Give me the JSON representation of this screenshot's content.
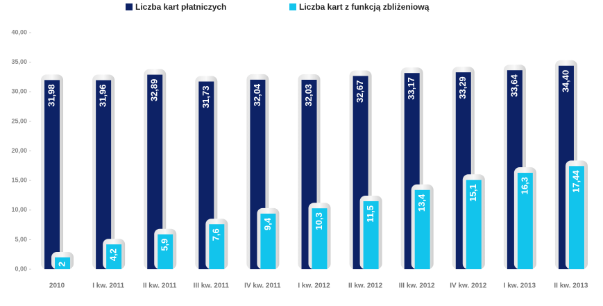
{
  "chart_data": {
    "type": "bar",
    "categories": [
      "2010",
      "I kw. 2011",
      "II kw. 2011",
      "III kw. 2011",
      "IV kw. 2011",
      "I kw. 2012",
      "II kw. 2012",
      "III kw. 2012",
      "IV kw. 2012",
      "I kw. 2013",
      "II kw. 2013"
    ],
    "series": [
      {
        "name": "Liczba kart płatniczych",
        "color": "#0d2266",
        "values": [
          31.98,
          31.96,
          32.89,
          31.73,
          32.04,
          32.03,
          32.67,
          33.17,
          33.29,
          33.64,
          34.4
        ],
        "value_labels": [
          "31,98",
          "31,96",
          "32,89",
          "31,73",
          "32,04",
          "32,03",
          "32,67",
          "33,17",
          "33,29",
          "33,64",
          "34,40"
        ]
      },
      {
        "name": "Liczba kart z funkcją zbliżeniową",
        "color": "#12c4ec",
        "values": [
          2,
          4.2,
          5.9,
          7.6,
          9.4,
          10.3,
          11.5,
          13.4,
          15.1,
          16.3,
          17.44
        ],
        "value_labels": [
          "2",
          "4,2",
          "5,9",
          "7,6",
          "9,4",
          "10,3",
          "11,5",
          "13,4",
          "15,1",
          "16,3",
          "17,44"
        ]
      }
    ],
    "ylim": [
      0,
      40
    ],
    "yticks": [
      {
        "value": 0,
        "label": "0,00"
      },
      {
        "value": 5,
        "label": "5,00"
      },
      {
        "value": 10,
        "label": "10,00"
      },
      {
        "value": 15,
        "label": "15,00"
      },
      {
        "value": 20,
        "label": "20,00"
      },
      {
        "value": 25,
        "label": "25,00"
      },
      {
        "value": 30,
        "label": "30,00"
      },
      {
        "value": 35,
        "label": "35,00"
      },
      {
        "value": 40,
        "label": "40,00"
      }
    ],
    "legend": "top"
  }
}
